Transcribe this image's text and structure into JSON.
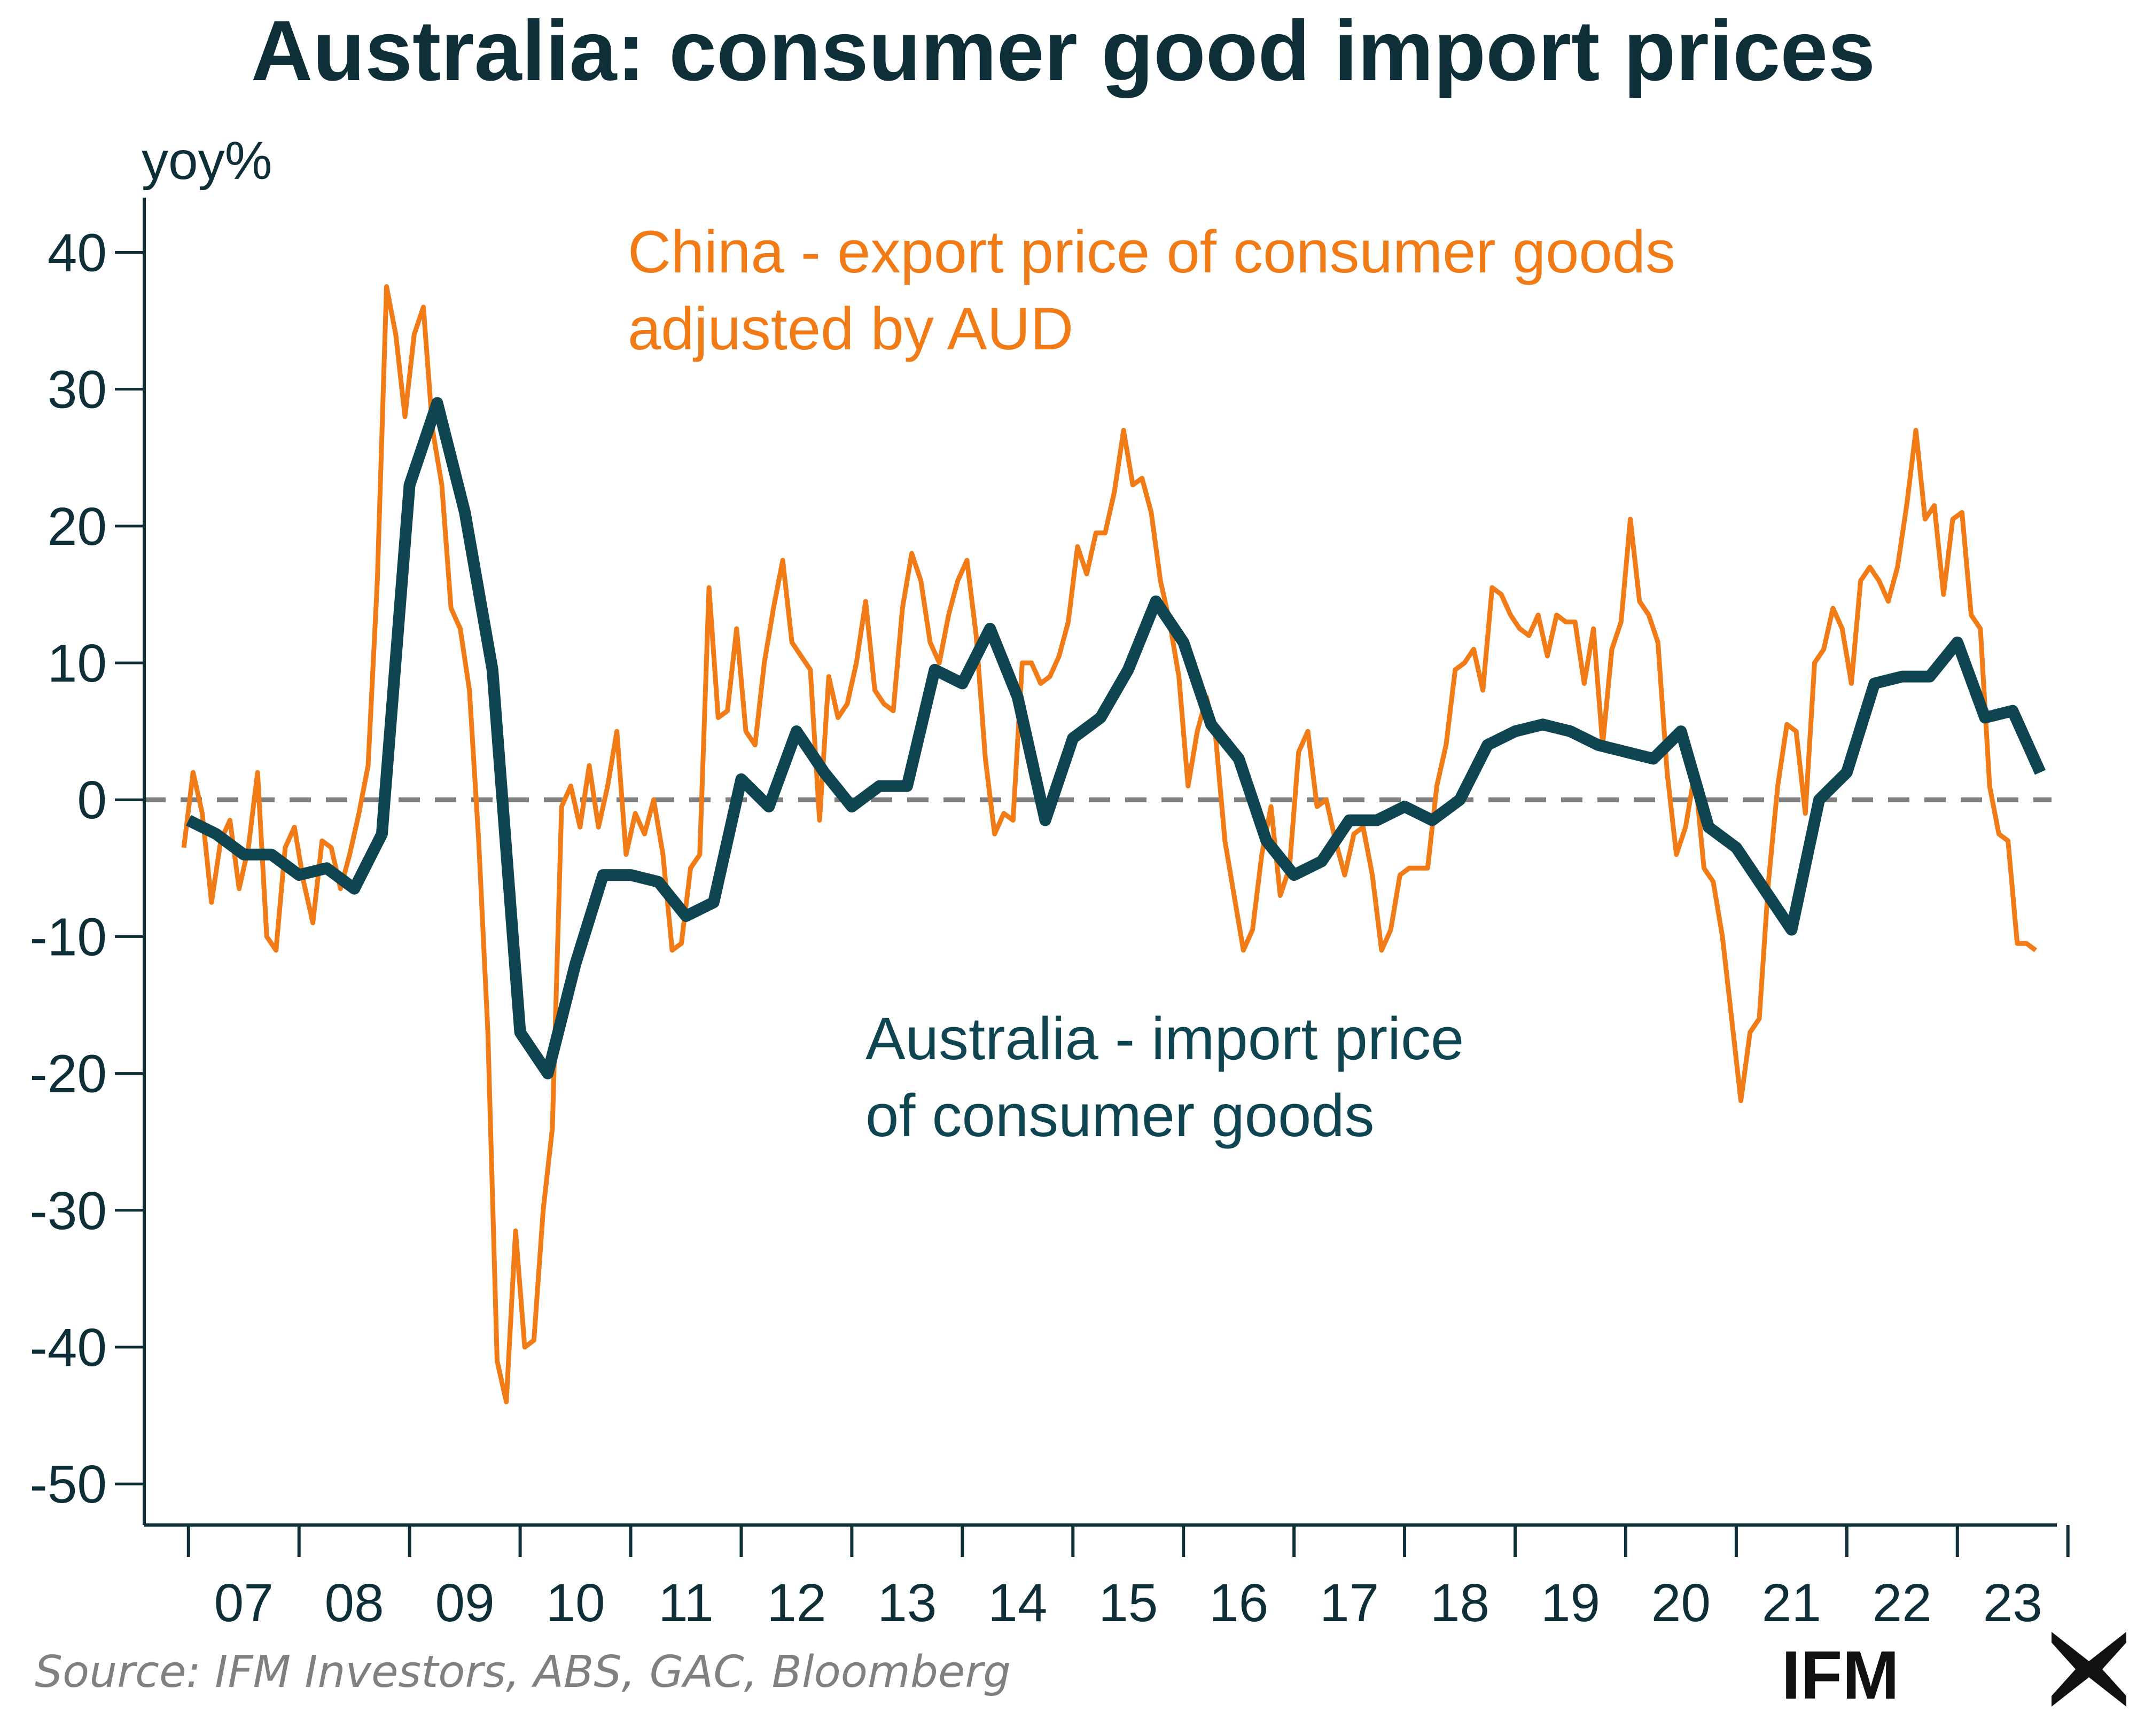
{
  "header": {
    "title": "Australia: consumer good import prices"
  },
  "brand": {
    "name": "IFM"
  },
  "source": "Source: IFM Investors, ABS, GAC, Bloomberg",
  "colors": {
    "china": "#f07b17",
    "australia": "#0e4550",
    "axis": "#0f2f38",
    "zero": "#808080"
  },
  "chart_data": {
    "type": "line",
    "title": "Australia: consumer good import prices",
    "ylabel": "yoy%",
    "xlabel": "",
    "ylim": [
      -53,
      44
    ],
    "yticks": [
      40,
      30,
      20,
      10,
      0,
      -10,
      -20,
      -30,
      -40,
      -50
    ],
    "ytick_labels": [
      "40",
      "30",
      "20",
      "10",
      "0",
      "-10",
      "-20",
      "-30",
      "-40",
      "-50"
    ],
    "xlim": [
      2006.6,
      2023.9
    ],
    "xtick_labels": [
      "07",
      "08",
      "09",
      "10",
      "11",
      "12",
      "13",
      "14",
      "15",
      "16",
      "17",
      "18",
      "19",
      "20",
      "21",
      "22",
      "23"
    ],
    "reference_line": {
      "y": 0,
      "style": "dashed"
    },
    "series": [
      {
        "name": "China - export price of consumer goods adjusted by AUD",
        "label_lines": [
          "China - export price of consumer goods",
          "adjusted by AUD"
        ],
        "frequency": "monthly",
        "start": 2006.9583,
        "values": [
          -3.5,
          2.0,
          -1.0,
          -7.5,
          -3.0,
          -1.5,
          -6.5,
          -3.5,
          2.0,
          -10.0,
          -11.0,
          -3.5,
          -2.0,
          -6.0,
          -9.0,
          -3.0,
          -3.5,
          -6.5,
          -4.0,
          -1.0,
          2.5,
          16.0,
          37.5,
          34.0,
          28.0,
          34.0,
          36.0,
          27.0,
          23.0,
          14.0,
          12.5,
          8.0,
          -3.0,
          -17.0,
          -41.0,
          -44.0,
          -31.5,
          -40.0,
          -39.5,
          -30.0,
          -24.0,
          -0.5,
          1.0,
          -2.0,
          2.5,
          -2.0,
          1.0,
          5.0,
          -4.0,
          -1.0,
          -2.5,
          0.0,
          -4.0,
          -11.0,
          -10.5,
          -5.0,
          -4.0,
          15.5,
          6.0,
          6.5,
          12.5,
          5.0,
          4.0,
          10.0,
          14.0,
          17.5,
          11.5,
          10.5,
          9.5,
          -1.5,
          9.0,
          6.0,
          7.0,
          10.0,
          14.5,
          8.0,
          7.0,
          6.5,
          14.0,
          18.0,
          16.0,
          11.5,
          10.0,
          13.5,
          16.0,
          17.5,
          12.0,
          3.0,
          -2.5,
          -1.0,
          -1.5,
          10.0,
          10.0,
          8.5,
          9.0,
          10.5,
          13.0,
          18.5,
          16.5,
          19.5,
          19.5,
          22.5,
          27.0,
          23.0,
          23.5,
          21.0,
          16.0,
          13.0,
          9.0,
          1.0,
          5.0,
          7.5,
          4.5,
          -3.0,
          -7.0,
          -11.0,
          -9.5,
          -4.0,
          -0.5,
          -7.0,
          -5.0,
          3.5,
          5.0,
          -0.5,
          0.0,
          -3.0,
          -5.5,
          -2.5,
          -2.0,
          -5.5,
          -11.0,
          -9.5,
          -5.5,
          -5.0,
          -5.0,
          -5.0,
          1.0,
          4.0,
          9.5,
          10.0,
          11.0,
          8.0,
          15.5,
          15.0,
          13.5,
          12.5,
          12.0,
          13.5,
          10.5,
          13.5,
          13.0,
          13.0,
          8.5,
          12.5,
          4.0,
          11.0,
          13.0,
          20.5,
          14.5,
          13.5,
          11.5,
          2.0,
          -4.0,
          -2.0,
          2.0,
          -5.0,
          -6.0,
          -10.0,
          -16.0,
          -22.0,
          -17.0,
          -16.0,
          -6.0,
          1.0,
          5.5,
          5.0,
          -1.0,
          10.0,
          11.0,
          14.0,
          12.5,
          8.5,
          16.0,
          17.0,
          16.0,
          14.5,
          17.0,
          21.5,
          27.0,
          20.5,
          21.5,
          15.0,
          20.5,
          21.0,
          13.5,
          12.5,
          1.0,
          -2.5,
          -3.0,
          -10.5,
          -10.5,
          -11.0
        ]
      },
      {
        "name": "Australia - import price of consumer goods",
        "label_lines": [
          "Australia - import price",
          "of consumer goods"
        ],
        "points": [
          [
            2007.0,
            -1.5
          ],
          [
            2007.25,
            -2.5
          ],
          [
            2007.5,
            -4.0
          ],
          [
            2007.75,
            -4.0
          ],
          [
            2008.0,
            -5.5
          ],
          [
            2008.25,
            -5.0
          ],
          [
            2008.5,
            -6.5
          ],
          [
            2008.75,
            -2.5
          ],
          [
            2009.0,
            23.0
          ],
          [
            2009.25,
            29.0
          ],
          [
            2009.5,
            21.0
          ],
          [
            2009.75,
            9.5
          ],
          [
            2010.0,
            -17.0
          ],
          [
            2010.25,
            -20.0
          ],
          [
            2010.5,
            -12.0
          ],
          [
            2010.75,
            -5.5
          ],
          [
            2011.0,
            -5.5
          ],
          [
            2011.25,
            -6.0
          ],
          [
            2011.5,
            -8.5
          ],
          [
            2011.75,
            -7.5
          ],
          [
            2012.0,
            1.5
          ],
          [
            2012.25,
            -0.5
          ],
          [
            2012.5,
            5.0
          ],
          [
            2012.75,
            2.0
          ],
          [
            2013.0,
            -0.5
          ],
          [
            2013.25,
            1.0
          ],
          [
            2013.5,
            1.0
          ],
          [
            2013.75,
            9.5
          ],
          [
            2014.0,
            8.5
          ],
          [
            2014.25,
            12.5
          ],
          [
            2014.5,
            7.5
          ],
          [
            2014.75,
            -1.5
          ],
          [
            2015.0,
            4.5
          ],
          [
            2015.25,
            6.0
          ],
          [
            2015.5,
            9.5
          ],
          [
            2015.75,
            14.5
          ],
          [
            2016.0,
            11.5
          ],
          [
            2016.25,
            5.5
          ],
          [
            2016.5,
            3.0
          ],
          [
            2016.75,
            -3.0
          ],
          [
            2017.0,
            -5.5
          ],
          [
            2017.25,
            -4.5
          ],
          [
            2017.5,
            -1.5
          ],
          [
            2017.75,
            -1.5
          ],
          [
            2018.0,
            -0.5
          ],
          [
            2018.25,
            -1.5
          ],
          [
            2018.5,
            0.0
          ],
          [
            2018.75,
            4.0
          ],
          [
            2019.0,
            5.0
          ],
          [
            2019.25,
            5.5
          ],
          [
            2019.5,
            5.0
          ],
          [
            2019.75,
            4.0
          ],
          [
            2020.0,
            3.5
          ],
          [
            2020.25,
            3.0
          ],
          [
            2020.5,
            5.0
          ],
          [
            2020.75,
            -2.0
          ],
          [
            2021.0,
            -3.5
          ],
          [
            2021.25,
            -6.5
          ],
          [
            2021.5,
            -9.5
          ],
          [
            2021.75,
            0.0
          ],
          [
            2022.0,
            2.0
          ],
          [
            2022.25,
            8.5
          ],
          [
            2022.5,
            9.0
          ],
          [
            2022.75,
            9.0
          ],
          [
            2023.0,
            11.5
          ],
          [
            2023.25,
            6.0
          ],
          [
            2023.5,
            6.5
          ],
          [
            2023.75,
            2.0
          ]
        ]
      }
    ]
  }
}
